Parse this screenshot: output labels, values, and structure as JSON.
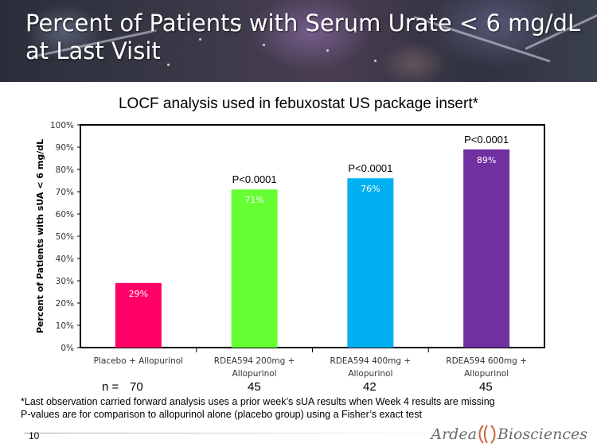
{
  "slide": {
    "title": "Percent of Patients with Serum Urate < 6 mg/dL at Last Visit",
    "subtitle": "LOCF analysis used in febuxostat US package insert*",
    "slide_number": "10",
    "footnotes": [
      "*Last observation carried forward analysis uses a prior week’s sUA results when Week 4 results are missing",
      "P-values are for comparison to allopurinol alone (placebo group) using a Fisher’s exact test"
    ],
    "n_label": "n =",
    "n_values": [
      "70",
      "45",
      "42",
      "45"
    ],
    "logo": {
      "left": "Ardea",
      "right": "Biosciences",
      "mark_color": "#c8643c"
    }
  },
  "chart_data": {
    "type": "bar",
    "categories": [
      [
        "Placebo + Allopurinol"
      ],
      [
        "RDEA594 200mg +",
        "Allopurinol"
      ],
      [
        "RDEA594 400mg +",
        "Allopurinol"
      ],
      [
        "RDEA594 600mg +",
        "Allopurinol"
      ]
    ],
    "values": [
      29,
      71,
      76,
      89
    ],
    "data_labels": [
      "29%",
      "71%",
      "76%",
      "89%"
    ],
    "bar_colors": [
      "#ff0066",
      "#66ff33",
      "#00b0f0",
      "#7030a0"
    ],
    "label_colors": [
      "#ffffff",
      "#ffffff",
      "#ffffff",
      "#ffffff"
    ],
    "p_values": [
      "",
      "P<0.0001",
      "P<0.0001",
      "P<0.0001"
    ],
    "ylabel": "Percent of Patients with sUA < 6 mg/dL",
    "ylim": [
      0,
      100
    ],
    "yticks": [
      0,
      10,
      20,
      30,
      40,
      50,
      60,
      70,
      80,
      90,
      100
    ],
    "ytick_labels": [
      "0%",
      "10%",
      "20%",
      "30%",
      "40%",
      "50%",
      "60%",
      "70%",
      "80%",
      "90%",
      "100%"
    ],
    "grid": false,
    "legend": "none"
  }
}
